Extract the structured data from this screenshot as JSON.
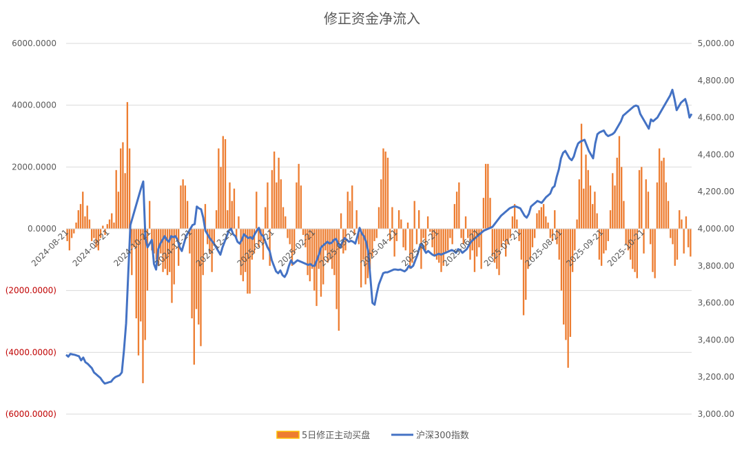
{
  "chart_data": {
    "type": "bar+line",
    "title": "修正资金净流入",
    "grid": true,
    "legend_position": "bottom",
    "left_axis": {
      "min": -6000,
      "max": 6000,
      "step": 2000,
      "tick_labels": [
        "(6000.0000)",
        "(4000.0000)",
        "(2000.0000)",
        "0.0000",
        "2000.0000",
        "4000.0000",
        "6000.0000"
      ],
      "negative_color": "#c00000"
    },
    "right_axis": {
      "min": 3000,
      "max": 5000,
      "step": 200,
      "tick_labels": [
        "3,000.00",
        "3,200.00",
        "3,400.00",
        "3,600.00",
        "3,800.00",
        "4,000.00",
        "4,200.00",
        "4,400.00",
        "4,600.00",
        "4,800.00",
        "5,000.00"
      ]
    },
    "x_tick_labels": [
      "2024-08-21",
      "2024-09-21",
      "2024-10-21",
      "2024-11-21",
      "2024-12-21",
      "2025-01-21",
      "2025-02-21",
      "2025-03-21",
      "2025-04-21",
      "2025-05-21",
      "2025-06-21",
      "2025-07-21",
      "2025-08-21",
      "2025-09-21",
      "2025-10-21"
    ],
    "series": [
      {
        "name": "5日修正主动买盘",
        "kind": "bar",
        "axis": "left",
        "color": "#ed7d31",
        "values": [
          -400,
          -700,
          -300,
          -150,
          200,
          600,
          800,
          1200,
          400,
          750,
          300,
          -400,
          -300,
          -600,
          -700,
          -300,
          100,
          -200,
          150,
          300,
          500,
          200,
          1900,
          1200,
          2600,
          2800,
          1800,
          4100,
          2600,
          -1500,
          -600,
          -2900,
          -4100,
          -3000,
          -5000,
          -3600,
          -2000,
          900,
          -700,
          -800,
          -1000,
          -1200,
          -800,
          -1400,
          -1300,
          -1500,
          -1400,
          -2400,
          -1800,
          -300,
          -1200,
          1400,
          1600,
          1400,
          900,
          -800,
          -2900,
          -4400,
          -2600,
          -3100,
          -3800,
          -1500,
          800,
          -500,
          -800,
          -1400,
          -500,
          600,
          2600,
          2000,
          3000,
          2900,
          600,
          1500,
          900,
          1300,
          -300,
          400,
          -1500,
          -1700,
          -1400,
          -2100,
          -2100,
          -1000,
          -800,
          1200,
          -600,
          -400,
          -1000,
          700,
          1500,
          -1200,
          1900,
          2500,
          1500,
          2300,
          1600,
          700,
          400,
          -300,
          -500,
          -1200,
          -800,
          1500,
          2100,
          1400,
          -200,
          -600,
          -1500,
          -1700,
          -1300,
          -2000,
          -2500,
          -1300,
          -2200,
          -1800,
          -700,
          -1100,
          -1000,
          -1300,
          -1500,
          -2600,
          -3300,
          500,
          -800,
          -700,
          1200,
          900,
          1400,
          -200,
          600,
          -500,
          -1900,
          -1000,
          -1800,
          -1600,
          -1300,
          -900,
          -400,
          -300,
          700,
          1600,
          2600,
          2500,
          2300,
          -400,
          700,
          -900,
          -400,
          600,
          300,
          -600,
          -700,
          200,
          -1300,
          -1100,
          900,
          -500,
          600,
          -1300,
          -300,
          -700,
          400,
          -100,
          -600,
          -900,
          -1000,
          -1100,
          -1400,
          -1200,
          -800,
          -700,
          -300,
          -500,
          800,
          1200,
          1500,
          -300,
          -500,
          400,
          -300,
          -1000,
          -700,
          -1400,
          -900,
          -600,
          -1300,
          1000,
          2100,
          2100,
          1000,
          -900,
          -1100,
          -1300,
          -1500,
          -600,
          -400,
          -900,
          -500,
          -300,
          400,
          800,
          300,
          -400,
          -1000,
          -2800,
          -2300,
          -1300,
          -1000,
          -600,
          -300,
          500,
          600,
          700,
          800,
          400,
          200,
          -300,
          -400,
          600,
          -500,
          -1000,
          -2000,
          -3100,
          -3600,
          -4500,
          -3500,
          -1400,
          -700,
          300,
          1600,
          3400,
          1300,
          2400,
          1900,
          1400,
          800,
          1200,
          500,
          -1000,
          -1200,
          -800,
          -700,
          -400,
          600,
          1800,
          1400,
          2300,
          3000,
          2000,
          900,
          -500,
          -700,
          -1000,
          -1300,
          -1400,
          -1600,
          1900,
          2000,
          -800,
          1600,
          1200,
          -500,
          -1400,
          -1600,
          1500,
          2600,
          2200,
          2300,
          1500,
          900,
          -300,
          -500,
          -1200,
          -1000,
          600,
          300,
          -800,
          400,
          -600,
          -900
        ]
      },
      {
        "name": "沪深300指数",
        "kind": "line",
        "axis": "right",
        "color": "#4472c4",
        "values": [
          3320,
          3310,
          3325,
          3322,
          3320,
          3316,
          3312,
          3290,
          3305,
          3280,
          3272,
          3260,
          3248,
          3225,
          3215,
          3205,
          3195,
          3178,
          3165,
          3168,
          3172,
          3175,
          3190,
          3200,
          3205,
          3210,
          3225,
          3345,
          3490,
          3760,
          4020,
          4060,
          4100,
          4140,
          4180,
          4220,
          4255,
          3950,
          3900,
          3920,
          3940,
          3810,
          3780,
          3890,
          3920,
          3940,
          3960,
          3940,
          3930,
          3960,
          3955,
          3960,
          3940,
          3900,
          3880,
          3920,
          3960,
          3980,
          4000,
          4020,
          4025,
          4120,
          4110,
          4105,
          4060,
          3990,
          3970,
          3950,
          3935,
          3920,
          3900,
          3880,
          3860,
          3900,
          3930,
          3960,
          3990,
          4000,
          3970,
          3960,
          3930,
          3920,
          3940,
          3970,
          3960,
          3950,
          3955,
          3945,
          3970,
          3990,
          4005,
          3970,
          3960,
          3930,
          3900,
          3880,
          3830,
          3800,
          3770,
          3760,
          3775,
          3750,
          3740,
          3760,
          3800,
          3830,
          3810,
          3820,
          3830,
          3825,
          3820,
          3815,
          3810,
          3805,
          3810,
          3800,
          3800,
          3830,
          3860,
          3900,
          3910,
          3920,
          3930,
          3920,
          3925,
          3940,
          3945,
          3920,
          3900,
          3930,
          3950,
          3940,
          3930,
          3935,
          3930,
          3920,
          3960,
          4005,
          3975,
          3960,
          3930,
          3880,
          3740,
          3600,
          3590,
          3650,
          3700,
          3730,
          3760,
          3765,
          3765,
          3770,
          3775,
          3780,
          3780,
          3778,
          3780,
          3775,
          3770,
          3780,
          3800,
          3790,
          3800,
          3830,
          3860,
          3900,
          3920,
          3890,
          3870,
          3880,
          3870,
          3860,
          3855,
          3860,
          3865,
          3860,
          3865,
          3870,
          3875,
          3880,
          3885,
          3880,
          3870,
          3890,
          3885,
          3870,
          3880,
          3890,
          3910,
          3930,
          3940,
          3950,
          3960,
          3970,
          3980,
          3990,
          3995,
          4000,
          4005,
          4010,
          4025,
          4040,
          4055,
          4070,
          4080,
          4090,
          4100,
          4110,
          4115,
          4120,
          4120,
          4115,
          4110,
          4090,
          4070,
          4060,
          4080,
          4120,
          4130,
          4140,
          4150,
          4145,
          4140,
          4155,
          4170,
          4180,
          4190,
          4220,
          4230,
          4280,
          4320,
          4380,
          4410,
          4420,
          4400,
          4380,
          4370,
          4390,
          4430,
          4460,
          4470,
          4475,
          4480,
          4450,
          4420,
          4400,
          4380,
          4460,
          4510,
          4520,
          4525,
          4530,
          4510,
          4500,
          4505,
          4510,
          4520,
          4540,
          4560,
          4580,
          4610,
          4620,
          4630,
          4640,
          4650,
          4660,
          4665,
          4660,
          4620,
          4600,
          4580,
          4560,
          4540,
          4590,
          4580,
          4590,
          4600,
          4620,
          4640,
          4660,
          4680,
          4700,
          4720,
          4750,
          4700,
          4640,
          4660,
          4680,
          4690,
          4700,
          4660,
          4600,
          4620
        ]
      }
    ]
  }
}
